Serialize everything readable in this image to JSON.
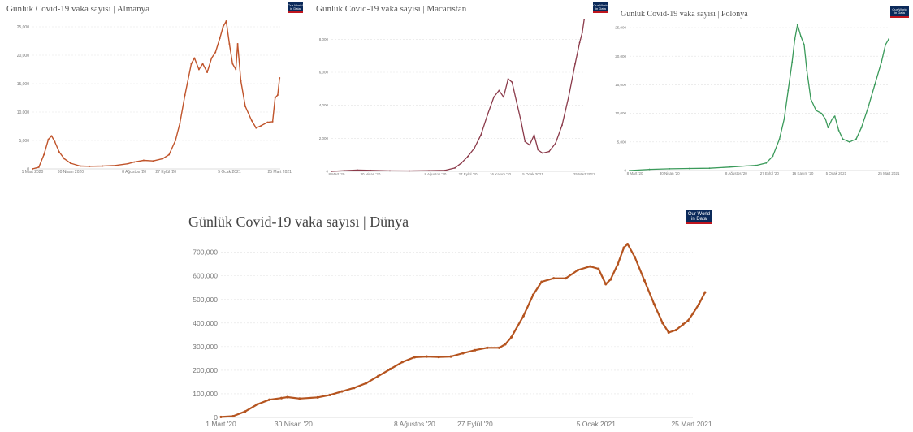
{
  "logo": {
    "line1": "Our World",
    "line2": "in Data"
  },
  "chart_data": [
    {
      "type": "line",
      "title": "Günlük Covid-19 vaka sayısı | Almanya",
      "color": "#c0542b",
      "ylim": [
        0,
        25000
      ],
      "yticks": [
        "0",
        "5,000",
        "10,000",
        "15,000",
        "20,000",
        "25,000"
      ],
      "xlim": [
        0,
        390
      ],
      "xticks": [
        {
          "x": 0,
          "label": "1 Mart 2020"
        },
        {
          "x": 60,
          "label": "30 Nisan 2020"
        },
        {
          "x": 160,
          "label": "8 Ağustos '20"
        },
        {
          "x": 210,
          "label": "27 Eylül '20"
        },
        {
          "x": 310,
          "label": "5 Ocak 2021"
        },
        {
          "x": 389,
          "label": "25 Mart 2021"
        }
      ],
      "series": [
        {
          "points": [
            [
              0,
              0
            ],
            [
              10,
              300
            ],
            [
              18,
              2500
            ],
            [
              25,
              5200
            ],
            [
              30,
              5800
            ],
            [
              35,
              4800
            ],
            [
              42,
              3000
            ],
            [
              50,
              1800
            ],
            [
              60,
              1000
            ],
            [
              75,
              500
            ],
            [
              90,
              450
            ],
            [
              110,
              500
            ],
            [
              130,
              600
            ],
            [
              150,
              900
            ],
            [
              160,
              1200
            ],
            [
              175,
              1500
            ],
            [
              190,
              1400
            ],
            [
              205,
              1800
            ],
            [
              215,
              2500
            ],
            [
              225,
              5000
            ],
            [
              232,
              8000
            ],
            [
              240,
              13000
            ],
            [
              250,
              18500
            ],
            [
              255,
              19500
            ],
            [
              262,
              17500
            ],
            [
              268,
              18500
            ],
            [
              275,
              17000
            ],
            [
              282,
              19500
            ],
            [
              288,
              20500
            ],
            [
              295,
              23000
            ],
            [
              300,
              25000
            ],
            [
              305,
              26000
            ],
            [
              310,
              22000
            ],
            [
              315,
              18500
            ],
            [
              320,
              17500
            ],
            [
              323,
              22000
            ],
            [
              328,
              15500
            ],
            [
              335,
              11000
            ],
            [
              345,
              8500
            ],
            [
              352,
              7200
            ],
            [
              360,
              7600
            ],
            [
              370,
              8200
            ],
            [
              378,
              8300
            ],
            [
              382,
              12500
            ],
            [
              386,
              13000
            ],
            [
              389,
              16000
            ]
          ]
        }
      ]
    },
    {
      "type": "line",
      "title": "Günlük Covid-19 vaka sayısı | Macaristan",
      "color": "#8b3a4a",
      "ylim": [
        0,
        9000
      ],
      "yticks": [
        "0",
        "2,000",
        "4,000",
        "6,000",
        "8,000"
      ],
      "xlim": [
        0,
        390
      ],
      "xticks": [
        {
          "x": 8,
          "label": "8 Mart '20"
        },
        {
          "x": 60,
          "label": "30 Nisan '20"
        },
        {
          "x": 160,
          "label": "8 Ağustos '20"
        },
        {
          "x": 210,
          "label": "27 Eylül '20"
        },
        {
          "x": 260,
          "label": "16 Kasım '20"
        },
        {
          "x": 310,
          "label": "5 Ocak 2021"
        },
        {
          "x": 389,
          "label": "25 Mart 2021"
        }
      ],
      "series": [
        {
          "points": [
            [
              0,
              0
            ],
            [
              20,
              40
            ],
            [
              40,
              80
            ],
            [
              60,
              60
            ],
            [
              90,
              30
            ],
            [
              120,
              25
            ],
            [
              150,
              40
            ],
            [
              175,
              60
            ],
            [
              190,
              200
            ],
            [
              200,
              500
            ],
            [
              210,
              900
            ],
            [
              220,
              1400
            ],
            [
              230,
              2200
            ],
            [
              240,
              3400
            ],
            [
              250,
              4500
            ],
            [
              258,
              4900
            ],
            [
              265,
              4500
            ],
            [
              272,
              5600
            ],
            [
              278,
              5400
            ],
            [
              285,
              4200
            ],
            [
              292,
              3000
            ],
            [
              298,
              1800
            ],
            [
              305,
              1600
            ],
            [
              312,
              2200
            ],
            [
              318,
              1300
            ],
            [
              325,
              1100
            ],
            [
              335,
              1200
            ],
            [
              345,
              1700
            ],
            [
              355,
              2800
            ],
            [
              365,
              4500
            ],
            [
              375,
              6500
            ],
            [
              382,
              7800
            ],
            [
              386,
              8400
            ],
            [
              389,
              9200
            ]
          ]
        }
      ]
    },
    {
      "type": "line",
      "title": "Günlük Covid-19 vaka sayısı | Polonya",
      "color": "#3a9a5a",
      "ylim": [
        0,
        25000
      ],
      "yticks": [
        "0",
        "5,000",
        "10,000",
        "15,000",
        "20,000",
        "25,000"
      ],
      "xlim": [
        0,
        390
      ],
      "xticks": [
        {
          "x": 8,
          "label": "8 Mart '20"
        },
        {
          "x": 60,
          "label": "30 Nisan '20"
        },
        {
          "x": 160,
          "label": "8 Ağustos '20"
        },
        {
          "x": 210,
          "label": "27 Eylül '20"
        },
        {
          "x": 260,
          "label": "16 Kasım '20"
        },
        {
          "x": 310,
          "label": "5 Ocak 2021"
        },
        {
          "x": 389,
          "label": "25 Mart 2021"
        }
      ],
      "series": [
        {
          "points": [
            [
              0,
              0
            ],
            [
              30,
              200
            ],
            [
              60,
              300
            ],
            [
              90,
              350
            ],
            [
              120,
              400
            ],
            [
              150,
              600
            ],
            [
              175,
              800
            ],
            [
              190,
              900
            ],
            [
              205,
              1300
            ],
            [
              215,
              2500
            ],
            [
              225,
              5500
            ],
            [
              232,
              9000
            ],
            [
              238,
              14000
            ],
            [
              244,
              19000
            ],
            [
              248,
              23000
            ],
            [
              252,
              25500
            ],
            [
              257,
              23500
            ],
            [
              262,
              22000
            ],
            [
              266,
              17500
            ],
            [
              272,
              12500
            ],
            [
              280,
              10500
            ],
            [
              288,
              10000
            ],
            [
              294,
              9000
            ],
            [
              298,
              7500
            ],
            [
              304,
              9000
            ],
            [
              308,
              9500
            ],
            [
              314,
              7000
            ],
            [
              320,
              5500
            ],
            [
              330,
              5000
            ],
            [
              340,
              5500
            ],
            [
              348,
              7500
            ],
            [
              358,
              11000
            ],
            [
              368,
              15000
            ],
            [
              378,
              19000
            ],
            [
              384,
              22000
            ],
            [
              389,
              23000
            ]
          ]
        }
      ]
    },
    {
      "type": "line",
      "title": "Günlük Covid-19 vaka sayısı | Dünya",
      "color": "#b5541f",
      "ylim": [
        0,
        730000
      ],
      "yticks": [
        "0",
        "100,000",
        "200,000",
        "300,000",
        "400,000",
        "500,000",
        "600,000",
        "700,000"
      ],
      "xlim": [
        0,
        390
      ],
      "xticks": [
        {
          "x": 0,
          "label": "1 Mart '20"
        },
        {
          "x": 60,
          "label": "30 Nisan '20"
        },
        {
          "x": 160,
          "label": "8 Ağustos '20"
        },
        {
          "x": 210,
          "label": "27 Eylül '20"
        },
        {
          "x": 310,
          "label": "5 Ocak 2021"
        },
        {
          "x": 389,
          "label": "25 Mart 2021"
        }
      ],
      "series": [
        {
          "points": [
            [
              0,
              2000
            ],
            [
              10,
              5000
            ],
            [
              20,
              25000
            ],
            [
              30,
              55000
            ],
            [
              40,
              75000
            ],
            [
              50,
              82000
            ],
            [
              55,
              86000
            ],
            [
              65,
              80000
            ],
            [
              80,
              85000
            ],
            [
              90,
              95000
            ],
            [
              100,
              110000
            ],
            [
              110,
              125000
            ],
            [
              120,
              145000
            ],
            [
              130,
              175000
            ],
            [
              140,
              205000
            ],
            [
              150,
              235000
            ],
            [
              160,
              255000
            ],
            [
              170,
              258000
            ],
            [
              180,
              256000
            ],
            [
              190,
              258000
            ],
            [
              200,
              272000
            ],
            [
              210,
              285000
            ],
            [
              220,
              295000
            ],
            [
              230,
              295000
            ],
            [
              235,
              310000
            ],
            [
              240,
              340000
            ],
            [
              250,
              430000
            ],
            [
              258,
              520000
            ],
            [
              265,
              575000
            ],
            [
              275,
              590000
            ],
            [
              285,
              590000
            ],
            [
              295,
              625000
            ],
            [
              305,
              640000
            ],
            [
              312,
              630000
            ],
            [
              318,
              565000
            ],
            [
              322,
              585000
            ],
            [
              328,
              650000
            ],
            [
              333,
              720000
            ],
            [
              336,
              735000
            ],
            [
              342,
              680000
            ],
            [
              350,
              580000
            ],
            [
              358,
              480000
            ],
            [
              365,
              400000
            ],
            [
              370,
              360000
            ],
            [
              376,
              370000
            ],
            [
              382,
              395000
            ],
            [
              386,
              410000
            ],
            [
              390,
              440000
            ],
            [
              395,
              480000
            ],
            [
              400,
              530000
            ]
          ]
        }
      ]
    }
  ]
}
